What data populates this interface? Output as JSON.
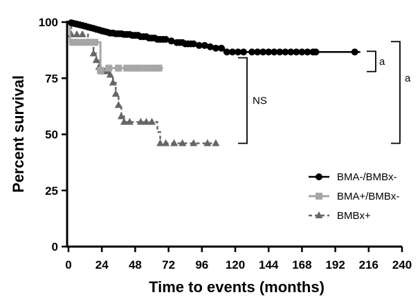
{
  "chart_data": {
    "type": "line",
    "subtype": "kaplan-meier",
    "xlabel": "Time to events (months)",
    "ylabel": "Percent survival",
    "xlim": [
      0,
      240
    ],
    "ylim": [
      0,
      100
    ],
    "x_ticks": [
      0,
      24,
      48,
      72,
      96,
      120,
      144,
      168,
      192,
      216,
      240
    ],
    "y_ticks": [
      0,
      25,
      50,
      75,
      100
    ],
    "grid": false,
    "legend": "bottom-right",
    "series": [
      {
        "name": "BMA-/BMBx-",
        "marker": "circle",
        "line_style": "solid",
        "color": "#000000",
        "steps": [
          [
            0,
            100
          ],
          [
            2,
            99.7
          ],
          [
            4,
            99.4
          ],
          [
            6,
            99.1
          ],
          [
            8,
            98.8
          ],
          [
            10,
            98.5
          ],
          [
            12,
            98.2
          ],
          [
            14,
            97.8
          ],
          [
            16,
            97.5
          ],
          [
            18,
            97.2
          ],
          [
            20,
            96.8
          ],
          [
            22,
            96.5
          ],
          [
            24,
            96.1
          ],
          [
            26,
            95.8
          ],
          [
            28,
            95.5
          ],
          [
            30,
            95.1
          ],
          [
            34,
            94.8
          ],
          [
            40,
            94.5
          ],
          [
            46,
            94.1
          ],
          [
            52,
            93.5
          ],
          [
            58,
            92.9
          ],
          [
            64,
            92.3
          ],
          [
            72,
            91.6
          ],
          [
            78,
            90.9
          ],
          [
            84,
            90.3
          ],
          [
            92,
            89.6
          ],
          [
            100,
            89.0
          ],
          [
            106,
            88.4
          ],
          [
            112,
            86.7
          ],
          [
            210,
            86.7
          ]
        ],
        "marks": [
          2,
          4,
          6,
          8,
          10,
          12,
          14,
          16,
          18,
          20,
          22,
          24,
          26,
          28,
          30,
          32,
          34,
          36,
          38,
          40,
          42,
          44,
          46,
          48,
          50,
          52,
          54,
          56,
          58,
          60,
          62,
          64,
          66,
          68,
          70,
          74,
          78,
          80,
          82,
          84,
          86,
          88,
          90,
          94,
          98,
          102,
          106,
          110,
          114,
          118,
          122,
          126,
          132,
          136,
          140,
          144,
          148,
          152,
          156,
          160,
          164,
          168,
          172,
          176,
          178,
          206
        ]
      },
      {
        "name": "BMA+/BMBx-",
        "marker": "square",
        "line_style": "solid",
        "color": "#a6a6a6",
        "steps": [
          [
            0,
            100
          ],
          [
            1,
            91
          ],
          [
            22,
            91
          ],
          [
            23,
            78.5
          ],
          [
            26,
            78.5
          ],
          [
            27,
            79.5
          ],
          [
            68,
            79.5
          ]
        ],
        "marks": [
          3,
          7,
          11,
          15,
          19,
          23,
          29,
          36,
          42,
          47,
          51,
          56,
          61,
          65
        ]
      },
      {
        "name": "BMBx+",
        "marker": "triangle",
        "line_style": "dashed",
        "color": "#666666",
        "steps": [
          [
            0,
            100
          ],
          [
            2,
            94.5
          ],
          [
            14,
            91
          ],
          [
            18,
            86
          ],
          [
            20,
            83
          ],
          [
            22,
            80
          ],
          [
            24,
            78
          ],
          [
            30,
            76.5
          ],
          [
            32,
            73
          ],
          [
            34,
            68
          ],
          [
            36,
            63
          ],
          [
            38,
            58
          ],
          [
            40,
            55.5
          ],
          [
            48,
            55.5
          ],
          [
            54,
            55.5
          ],
          [
            60,
            55.5
          ],
          [
            64,
            51
          ],
          [
            66,
            46
          ],
          [
            106,
            46
          ]
        ],
        "marks": [
          2,
          6,
          10,
          14,
          18,
          20,
          22,
          24,
          26,
          28,
          30,
          32,
          34,
          36,
          38,
          40,
          44,
          52,
          56,
          60,
          66,
          70,
          76,
          82,
          90,
          100,
          106
        ]
      }
    ],
    "annotations": [
      {
        "text": "a",
        "between": [
          "BMA-/BMBx-",
          "BMA+/BMBx-"
        ],
        "y_range": [
          79.5,
          86.7
        ]
      },
      {
        "text": "NS",
        "between": [
          "BMA+/BMBx-",
          "BMBx+"
        ],
        "y_range": [
          46,
          79.5
        ]
      },
      {
        "text": "a",
        "between": [
          "BMA-/BMBx-",
          "BMBx+"
        ],
        "y_range": [
          46,
          86.7
        ]
      }
    ]
  }
}
